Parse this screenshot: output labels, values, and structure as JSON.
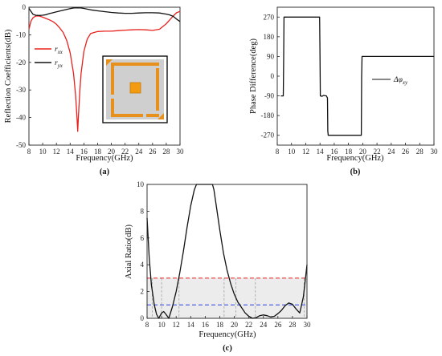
{
  "chart_data": [
    {
      "panel": "(a)",
      "type": "line",
      "xlabel": "Frequency(GHz)",
      "ylabel": "Reflection Coefficients(dB)",
      "xlim": [
        8,
        30
      ],
      "ylim": [
        -50,
        0
      ],
      "xticks": [
        8,
        10,
        12,
        14,
        16,
        18,
        20,
        22,
        24,
        26,
        28,
        30
      ],
      "yticks": [
        0,
        -10,
        -20,
        -30,
        -40,
        -50
      ],
      "legend": "upper-left",
      "series": [
        {
          "name": "rxx",
          "name_main": "r",
          "name_sub": "xx",
          "color": "#e8211d",
          "x": [
            8,
            8.3,
            8.6,
            9,
            9.5,
            10,
            10.5,
            11,
            11.5,
            12,
            12.5,
            13,
            13.5,
            14,
            14.5,
            14.8,
            15,
            15.1,
            15.2,
            15.4,
            15.6,
            16,
            16.5,
            17,
            18,
            19,
            20,
            21,
            22,
            23,
            24,
            25,
            26,
            27,
            28,
            28.5,
            29,
            29.5,
            30
          ],
          "y": [
            -8,
            -5,
            -3.8,
            -3.2,
            -3.2,
            -3.6,
            -4.1,
            -4.6,
            -5.2,
            -6.2,
            -7.6,
            -9.2,
            -12,
            -16.5,
            -24,
            -32,
            -40,
            -45,
            -40,
            -31,
            -24,
            -16,
            -11.5,
            -9.5,
            -8.8,
            -8.7,
            -8.7,
            -8.5,
            -8.3,
            -8.2,
            -8.1,
            -8.2,
            -8.4,
            -8,
            -6,
            -4.6,
            -3.2,
            -2,
            -1.5
          ]
        },
        {
          "name": "ryx",
          "name_main": "r",
          "name_sub": "yx",
          "color": "#111111",
          "x": [
            8,
            8.3,
            8.6,
            9,
            9.5,
            10,
            10.5,
            11,
            11.5,
            12,
            12.5,
            13,
            13.5,
            14,
            14.5,
            15,
            15.5,
            16,
            16.5,
            17,
            18,
            19,
            20,
            21,
            22,
            23,
            24,
            25,
            26,
            27,
            28,
            28.5,
            29,
            29.5,
            30
          ],
          "y": [
            -0.4,
            -1.5,
            -2.6,
            -2.9,
            -3,
            -2.9,
            -2.7,
            -2.3,
            -2,
            -1.7,
            -1.4,
            -1.1,
            -0.8,
            -0.5,
            -0.3,
            -0.2,
            -0.25,
            -0.45,
            -0.7,
            -0.95,
            -1.3,
            -1.6,
            -1.9,
            -2.1,
            -2.2,
            -2.2,
            -2.1,
            -2,
            -2,
            -2.1,
            -2.5,
            -2.8,
            -3.3,
            -4.3,
            -5.2
          ]
        }
      ],
      "inset": "unit-cell-icon"
    },
    {
      "panel": "(b)",
      "type": "line",
      "xlabel": "Frequency(GHz)",
      "ylabel": "Phase Difference(deg)",
      "xlim": [
        8,
        30
      ],
      "ylim": [
        -315,
        315
      ],
      "xticks": [
        8,
        10,
        12,
        14,
        16,
        18,
        20,
        22,
        24,
        26,
        28,
        30
      ],
      "yticks": [
        270,
        180,
        90,
        0,
        -90,
        -180,
        -270
      ],
      "legend": "right",
      "series": [
        {
          "name": "Δφxy",
          "name_main": "Δφ",
          "name_sub": "xy",
          "color": "#111111",
          "x": [
            8.5,
            8.85,
            8.9,
            8.95,
            13.95,
            14.0,
            14.05,
            14.3,
            14.5,
            14.9,
            15.05,
            15.1,
            15.15,
            15.3,
            15.6,
            19.8,
            19.85,
            19.9,
            30
          ],
          "y": [
            -90,
            -90,
            90,
            270,
            270,
            90,
            -90,
            -92,
            -88,
            -90,
            -100,
            -250,
            -270,
            -270,
            -270,
            -270,
            0,
            90,
            90
          ]
        }
      ]
    },
    {
      "panel": "(c)",
      "type": "line",
      "xlabel": "Frequency(GHz)",
      "ylabel": "Axial Ratio(dB)",
      "xlim": [
        8,
        30
      ],
      "ylim": [
        0,
        10
      ],
      "xticks": [
        8,
        10,
        12,
        14,
        16,
        18,
        20,
        22,
        24,
        26,
        28,
        30
      ],
      "yticks": [
        0,
        2,
        4,
        6,
        8,
        10
      ],
      "shaded_band": [
        0,
        3
      ],
      "ref_lines": [
        {
          "y": 3,
          "color": "#e8211d",
          "style": "dashed"
        },
        {
          "y": 1,
          "color": "#2a3fe0",
          "style": "dashed"
        }
      ],
      "vlines": [
        8.7,
        10,
        12.4,
        18.6,
        20.2,
        22.9,
        29.6
      ],
      "series": [
        {
          "name": "",
          "color": "#111111",
          "x": [
            8,
            8.3,
            8.6,
            9,
            9.3,
            9.6,
            10,
            10.3,
            10.6,
            11,
            11.5,
            12,
            12.5,
            13,
            13.5,
            14,
            14.5,
            14.8,
            15,
            17,
            17.2,
            17.5,
            18,
            18.5,
            19,
            19.5,
            20,
            20.5,
            21,
            21.5,
            22,
            22.5,
            23,
            23.5,
            24,
            24.5,
            25,
            25.5,
            26,
            26.5,
            27,
            27.5,
            28,
            28.5,
            29,
            29.5,
            30
          ],
          "y": [
            7.5,
            4.5,
            2.5,
            1.0,
            0.3,
            0.0,
            0.4,
            0.5,
            0.3,
            0.0,
            0.9,
            2.0,
            3.4,
            5.0,
            6.8,
            8.4,
            9.6,
            10,
            10,
            10,
            9.6,
            8.5,
            6.6,
            4.9,
            3.6,
            2.6,
            1.8,
            1.2,
            0.8,
            0.4,
            0.15,
            0.0,
            0.05,
            0.2,
            0.25,
            0.2,
            0.1,
            0.15,
            0.35,
            0.6,
            0.95,
            1.15,
            1.05,
            0.7,
            0.4,
            1.6,
            4.0
          ]
        }
      ]
    }
  ]
}
